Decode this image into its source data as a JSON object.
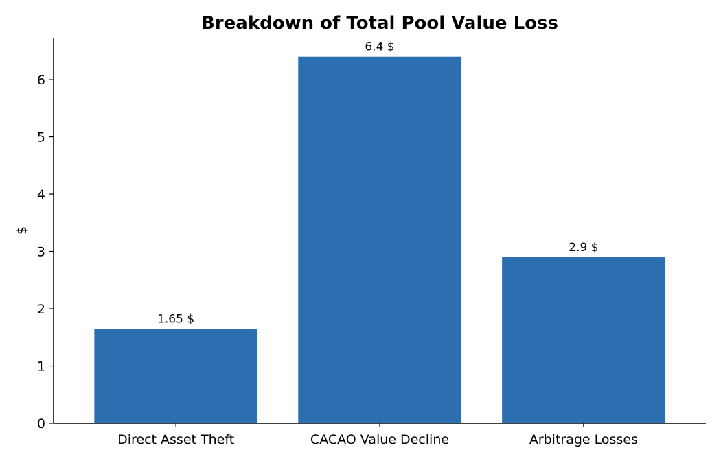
{
  "chart_data": {
    "type": "bar",
    "title": "Breakdown of Total Pool Value Loss",
    "xlabel": "",
    "ylabel": "$",
    "categories": [
      "Direct Asset Theft",
      "CACAO Value Decline",
      "Arbitrage Losses"
    ],
    "values": [
      1.65,
      6.4,
      2.9
    ],
    "data_labels": [
      "1.65 $",
      "6.4 $",
      "2.9 $"
    ],
    "ylim": [
      0,
      6.72
    ],
    "yticks": [
      0,
      1,
      2,
      3,
      4,
      5,
      6
    ],
    "bar_color": "#2d6eb0",
    "grid": false
  }
}
